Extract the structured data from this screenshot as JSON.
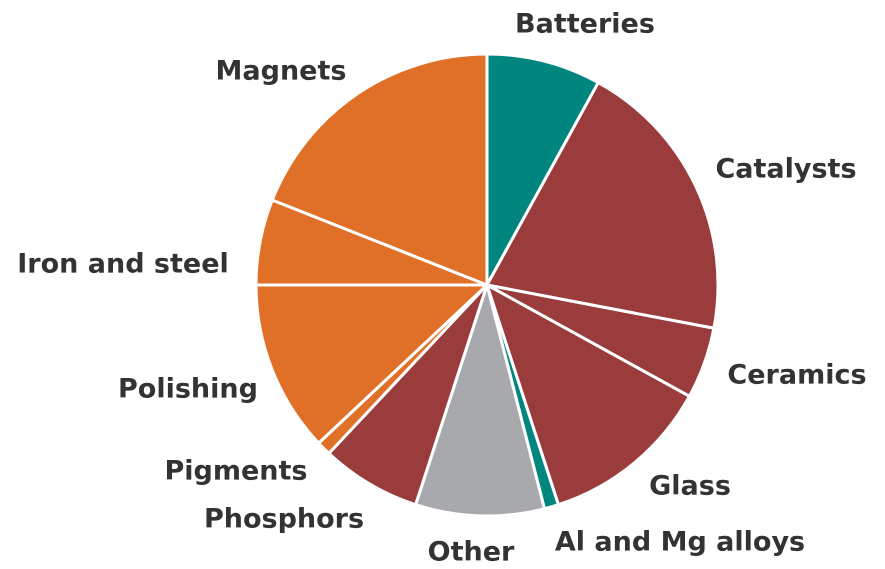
{
  "chart_data": {
    "type": "pie",
    "categories": [
      "Batteries",
      "Catalysts",
      "Ceramics",
      "Glass",
      "Al and Mg alloys",
      "Other",
      "Phosphors",
      "Pigments",
      "Polishing",
      "Iron and steel",
      "Magnets"
    ],
    "values": [
      8,
      20,
      5,
      12,
      1,
      9,
      7,
      1,
      12,
      6,
      19
    ],
    "colors": [
      "#00857f",
      "#9a3b3c",
      "#9a3b3c",
      "#9a3b3c",
      "#00857f",
      "#a7a9ac",
      "#9a3b3c",
      "#e07028",
      "#e07028",
      "#e07028",
      "#e07028"
    ]
  }
}
